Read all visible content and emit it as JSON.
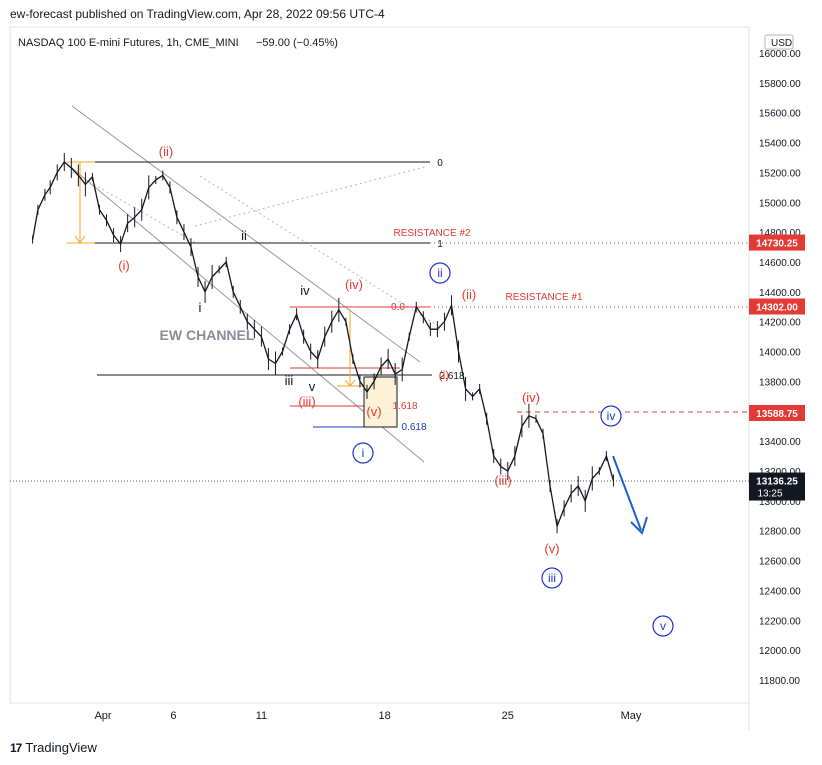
{
  "header": {
    "publisher": "ew-forecast published on TradingView.com, Apr 28, 2022 09:56 UTC-4",
    "symbol_line": "NASDAQ 100 E-mini Futures, 1h, CME_MINI",
    "change": "−59.00 (−0.45%)"
  },
  "footer": {
    "brand": "TradingView",
    "logo_glyph": "17"
  },
  "price_axis": {
    "currency": "USD",
    "ticks": [
      "16000.00",
      "15800.00",
      "15600.00",
      "15400.00",
      "15200.00",
      "15000.00",
      "14800.00",
      "14600.00",
      "14400.00",
      "14200.00",
      "14000.00",
      "13800.00",
      "13600.00",
      "13400.00",
      "13200.00",
      "13000.00",
      "12800.00",
      "12600.00",
      "12400.00",
      "12200.00",
      "12000.00",
      "11800.00"
    ],
    "tick_values": [
      16000,
      15800,
      15600,
      15400,
      15200,
      15000,
      14800,
      14600,
      14400,
      14200,
      14000,
      13800,
      13600,
      13400,
      13200,
      13000,
      12800,
      12600,
      12400,
      12200,
      12000,
      11800
    ],
    "tags": [
      {
        "label": "14730.25",
        "value": 14730.25,
        "color": "#e53935"
      },
      {
        "label": "14302.00",
        "value": 14302.0,
        "color": "#e53935"
      },
      {
        "label": "13588.75",
        "value": 13588.75,
        "color": "#e53935"
      }
    ],
    "last_price": {
      "label": "13136.25",
      "countdown": "13:25",
      "value": 13136.25
    }
  },
  "time_axis": {
    "labels": [
      "Apr",
      "6",
      "11",
      "18",
      "25",
      "May"
    ],
    "positions": [
      0,
      4,
      9,
      16,
      23,
      30
    ]
  },
  "chart_data": {
    "type": "line",
    "title": "NASDAQ 100 E-mini Futures, 1h, CME_MINI",
    "x_unit": "trading day index from Apr 1, 2022",
    "ylim": [
      11700,
      16100
    ],
    "series": [
      {
        "values": [
          [
            -4,
            14750
          ],
          [
            -3.7,
            14950
          ],
          [
            -3.3,
            15050
          ],
          [
            -3,
            15100
          ],
          [
            -2.6,
            15200
          ],
          [
            -2.2,
            15270
          ],
          [
            -1.8,
            15230
          ],
          [
            -1.4,
            15180
          ],
          [
            -1,
            15120
          ],
          [
            -0.6,
            15170
          ],
          [
            -0.2,
            14950
          ],
          [
            0.2,
            14880
          ],
          [
            0.6,
            14780
          ],
          [
            1,
            14720
          ],
          [
            1.4,
            14860
          ],
          [
            1.8,
            14900
          ],
          [
            2.2,
            14950
          ],
          [
            2.6,
            15100
          ],
          [
            3,
            15150
          ],
          [
            3.4,
            15180
          ],
          [
            3.8,
            15100
          ],
          [
            4.2,
            14900
          ],
          [
            4.6,
            14800
          ],
          [
            5,
            14700
          ],
          [
            5.4,
            14500
          ],
          [
            5.8,
            14400
          ],
          [
            6.2,
            14500
          ],
          [
            6.6,
            14550
          ],
          [
            7,
            14600
          ],
          [
            7.4,
            14400
          ],
          [
            7.8,
            14300
          ],
          [
            8.2,
            14200
          ],
          [
            8.6,
            14150
          ],
          [
            9,
            14100
          ],
          [
            9.4,
            13950
          ],
          [
            9.8,
            13920
          ],
          [
            10.2,
            14000
          ],
          [
            10.6,
            14150
          ],
          [
            11,
            14250
          ],
          [
            11.4,
            14100
          ],
          [
            11.8,
            14000
          ],
          [
            12.2,
            13950
          ],
          [
            12.6,
            14100
          ],
          [
            13,
            14200
          ],
          [
            13.4,
            14280
          ],
          [
            13.8,
            14200
          ],
          [
            14.2,
            13950
          ],
          [
            14.6,
            13800
          ],
          [
            15,
            13730
          ],
          [
            15.4,
            13800
          ],
          [
            15.8,
            13900
          ],
          [
            16.2,
            13950
          ],
          [
            16.6,
            13850
          ],
          [
            17,
            13880
          ],
          [
            17.4,
            14100
          ],
          [
            17.8,
            14300
          ],
          [
            18.2,
            14230
          ],
          [
            18.6,
            14150
          ],
          [
            19,
            14150
          ],
          [
            19.4,
            14200
          ],
          [
            19.8,
            14310
          ],
          [
            20.2,
            14000
          ],
          [
            20.6,
            13750
          ],
          [
            21,
            13700
          ],
          [
            21.4,
            13750
          ],
          [
            21.8,
            13550
          ],
          [
            22.2,
            13300
          ],
          [
            22.6,
            13230
          ],
          [
            23,
            13200
          ],
          [
            23.4,
            13300
          ],
          [
            23.8,
            13500
          ],
          [
            24.2,
            13570
          ],
          [
            24.6,
            13550
          ],
          [
            25,
            13450
          ],
          [
            25.4,
            13100
          ],
          [
            25.8,
            12830
          ],
          [
            26.2,
            12950
          ],
          [
            26.6,
            13050
          ],
          [
            27,
            13100
          ],
          [
            27.4,
            13000
          ],
          [
            27.8,
            13150
          ],
          [
            28.2,
            13200
          ],
          [
            28.6,
            13300
          ],
          [
            29,
            13136
          ]
        ]
      }
    ]
  },
  "annotations": {
    "channel_label": "EW CHANNEL",
    "resistance_1": "RESISTANCE #1",
    "resistance_2": "RESISTANCE #2",
    "fib_labels": [
      "0",
      "1",
      "0.0",
      "1.618",
      "0.618",
      "1.618",
      "2.618"
    ],
    "wave_labels_red": [
      "(ii)",
      "(i)",
      "(iv)",
      "(iii)",
      "(v)",
      "(ii)",
      "(iv)",
      "(iii)",
      "(v)",
      "(i)"
    ],
    "wave_labels_black": [
      "ii",
      "i",
      "iv",
      "iii",
      "v"
    ],
    "wave_labels_circled": [
      "i",
      "ii",
      "iii",
      "iv",
      "v"
    ]
  }
}
